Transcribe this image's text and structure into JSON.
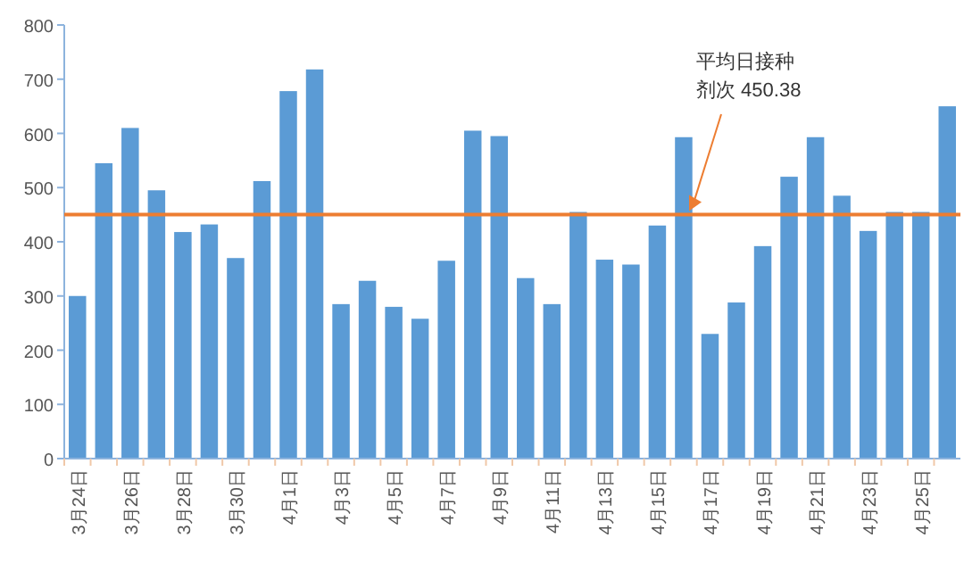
{
  "chart_data": {
    "type": "bar",
    "categories": [
      "3月24日",
      null,
      "3月26日",
      null,
      "3月28日",
      null,
      "3月30日",
      null,
      "4月1日",
      null,
      "4月3日",
      null,
      "4月5日",
      null,
      "4月7日",
      null,
      "4月9日",
      null,
      "4月11日",
      null,
      "4月13日",
      null,
      "4月15日",
      null,
      "4月17日",
      null,
      "4月19日",
      null,
      "4月21日",
      null,
      "4月23日",
      null,
      "4月25日",
      null
    ],
    "values": [
      300,
      545,
      610,
      495,
      418,
      432,
      370,
      512,
      678,
      718,
      285,
      328,
      280,
      258,
      365,
      605,
      595,
      333,
      285,
      455,
      367,
      358,
      430,
      593,
      230,
      288,
      392,
      520,
      593,
      485,
      420,
      455,
      455,
      650
    ],
    "color": "#5b9bd5",
    "ylim": [
      0,
      800
    ],
    "yticks": [
      0,
      100,
      200,
      300,
      400,
      500,
      600,
      700,
      800
    ],
    "ref_lines": [
      {
        "axis": "y",
        "value": 450.38,
        "label": "平均日接种剂次 450.38",
        "color": "#ed7d31"
      }
    ],
    "grid": false
  }
}
